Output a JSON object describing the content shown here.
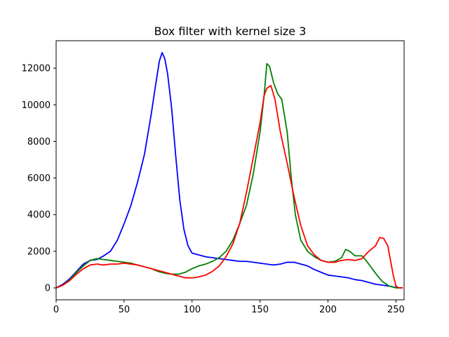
{
  "chart_data": {
    "type": "line",
    "title": "Box filter with kernel size 3",
    "xlabel": "",
    "ylabel": "",
    "xlim": [
      0,
      256
    ],
    "ylim": [
      -650,
      13500
    ],
    "x_ticks": [
      0,
      50,
      100,
      150,
      200,
      250
    ],
    "y_ticks": [
      0,
      2000,
      4000,
      6000,
      8000,
      10000,
      12000
    ],
    "grid": false,
    "series": [
      {
        "color": "#0000ff",
        "points": [
          [
            0,
            0
          ],
          [
            5,
            200
          ],
          [
            10,
            500
          ],
          [
            15,
            900
          ],
          [
            20,
            1300
          ],
          [
            25,
            1500
          ],
          [
            30,
            1550
          ],
          [
            35,
            1750
          ],
          [
            40,
            2000
          ],
          [
            45,
            2600
          ],
          [
            50,
            3500
          ],
          [
            55,
            4500
          ],
          [
            60,
            5800
          ],
          [
            65,
            7300
          ],
          [
            70,
            9500
          ],
          [
            73,
            11000
          ],
          [
            76,
            12400
          ],
          [
            78,
            12850
          ],
          [
            80,
            12500
          ],
          [
            82,
            11700
          ],
          [
            85,
            9800
          ],
          [
            88,
            7200
          ],
          [
            91,
            4800
          ],
          [
            94,
            3200
          ],
          [
            97,
            2300
          ],
          [
            100,
            1900
          ],
          [
            105,
            1800
          ],
          [
            110,
            1700
          ],
          [
            115,
            1650
          ],
          [
            120,
            1600
          ],
          [
            125,
            1550
          ],
          [
            130,
            1500
          ],
          [
            135,
            1450
          ],
          [
            140,
            1450
          ],
          [
            145,
            1400
          ],
          [
            150,
            1350
          ],
          [
            155,
            1300
          ],
          [
            160,
            1250
          ],
          [
            165,
            1300
          ],
          [
            170,
            1400
          ],
          [
            175,
            1400
          ],
          [
            180,
            1300
          ],
          [
            185,
            1200
          ],
          [
            190,
            1000
          ],
          [
            195,
            850
          ],
          [
            200,
            700
          ],
          [
            205,
            650
          ],
          [
            210,
            600
          ],
          [
            215,
            550
          ],
          [
            220,
            450
          ],
          [
            225,
            400
          ],
          [
            230,
            300
          ],
          [
            235,
            200
          ],
          [
            240,
            150
          ],
          [
            245,
            100
          ],
          [
            248,
            50
          ],
          [
            250,
            20
          ],
          [
            252,
            0
          ],
          [
            255,
            0
          ]
        ]
      },
      {
        "color": "#008000",
        "points": [
          [
            0,
            0
          ],
          [
            5,
            150
          ],
          [
            10,
            450
          ],
          [
            15,
            850
          ],
          [
            20,
            1200
          ],
          [
            25,
            1500
          ],
          [
            30,
            1600
          ],
          [
            35,
            1550
          ],
          [
            40,
            1500
          ],
          [
            45,
            1450
          ],
          [
            50,
            1400
          ],
          [
            55,
            1350
          ],
          [
            60,
            1250
          ],
          [
            65,
            1150
          ],
          [
            70,
            1050
          ],
          [
            75,
            900
          ],
          [
            80,
            800
          ],
          [
            85,
            750
          ],
          [
            90,
            750
          ],
          [
            95,
            850
          ],
          [
            100,
            1050
          ],
          [
            105,
            1200
          ],
          [
            110,
            1300
          ],
          [
            115,
            1450
          ],
          [
            120,
            1650
          ],
          [
            125,
            2000
          ],
          [
            130,
            2600
          ],
          [
            135,
            3500
          ],
          [
            140,
            4500
          ],
          [
            145,
            6200
          ],
          [
            150,
            8500
          ],
          [
            153,
            10500
          ],
          [
            155,
            12250
          ],
          [
            157,
            12100
          ],
          [
            160,
            11200
          ],
          [
            163,
            10600
          ],
          [
            166,
            10300
          ],
          [
            170,
            8500
          ],
          [
            173,
            6000
          ],
          [
            176,
            4000
          ],
          [
            180,
            2600
          ],
          [
            185,
            2000
          ],
          [
            190,
            1700
          ],
          [
            195,
            1500
          ],
          [
            200,
            1400
          ],
          [
            205,
            1450
          ],
          [
            210,
            1650
          ],
          [
            213,
            2100
          ],
          [
            216,
            2000
          ],
          [
            220,
            1750
          ],
          [
            225,
            1750
          ],
          [
            228,
            1500
          ],
          [
            232,
            1100
          ],
          [
            236,
            700
          ],
          [
            240,
            350
          ],
          [
            245,
            100
          ],
          [
            250,
            0
          ],
          [
            255,
            0
          ]
        ]
      },
      {
        "color": "#ff0000",
        "points": [
          [
            0,
            0
          ],
          [
            5,
            150
          ],
          [
            10,
            400
          ],
          [
            15,
            750
          ],
          [
            20,
            1050
          ],
          [
            25,
            1250
          ],
          [
            30,
            1300
          ],
          [
            35,
            1250
          ],
          [
            40,
            1300
          ],
          [
            45,
            1300
          ],
          [
            50,
            1350
          ],
          [
            55,
            1300
          ],
          [
            60,
            1250
          ],
          [
            65,
            1150
          ],
          [
            70,
            1050
          ],
          [
            75,
            950
          ],
          [
            80,
            850
          ],
          [
            85,
            750
          ],
          [
            90,
            650
          ],
          [
            95,
            550
          ],
          [
            100,
            550
          ],
          [
            105,
            600
          ],
          [
            110,
            700
          ],
          [
            115,
            900
          ],
          [
            120,
            1200
          ],
          [
            125,
            1700
          ],
          [
            130,
            2400
          ],
          [
            135,
            3500
          ],
          [
            140,
            5200
          ],
          [
            145,
            7100
          ],
          [
            150,
            9000
          ],
          [
            153,
            10500
          ],
          [
            155,
            10900
          ],
          [
            158,
            11050
          ],
          [
            161,
            10300
          ],
          [
            165,
            8500
          ],
          [
            170,
            6800
          ],
          [
            175,
            5000
          ],
          [
            180,
            3400
          ],
          [
            185,
            2300
          ],
          [
            190,
            1800
          ],
          [
            195,
            1500
          ],
          [
            200,
            1400
          ],
          [
            205,
            1400
          ],
          [
            210,
            1500
          ],
          [
            215,
            1550
          ],
          [
            220,
            1500
          ],
          [
            225,
            1600
          ],
          [
            230,
            2000
          ],
          [
            235,
            2300
          ],
          [
            238,
            2750
          ],
          [
            241,
            2700
          ],
          [
            244,
            2300
          ],
          [
            246,
            1500
          ],
          [
            248,
            700
          ],
          [
            250,
            100
          ],
          [
            252,
            0
          ],
          [
            255,
            0
          ]
        ]
      }
    ]
  }
}
